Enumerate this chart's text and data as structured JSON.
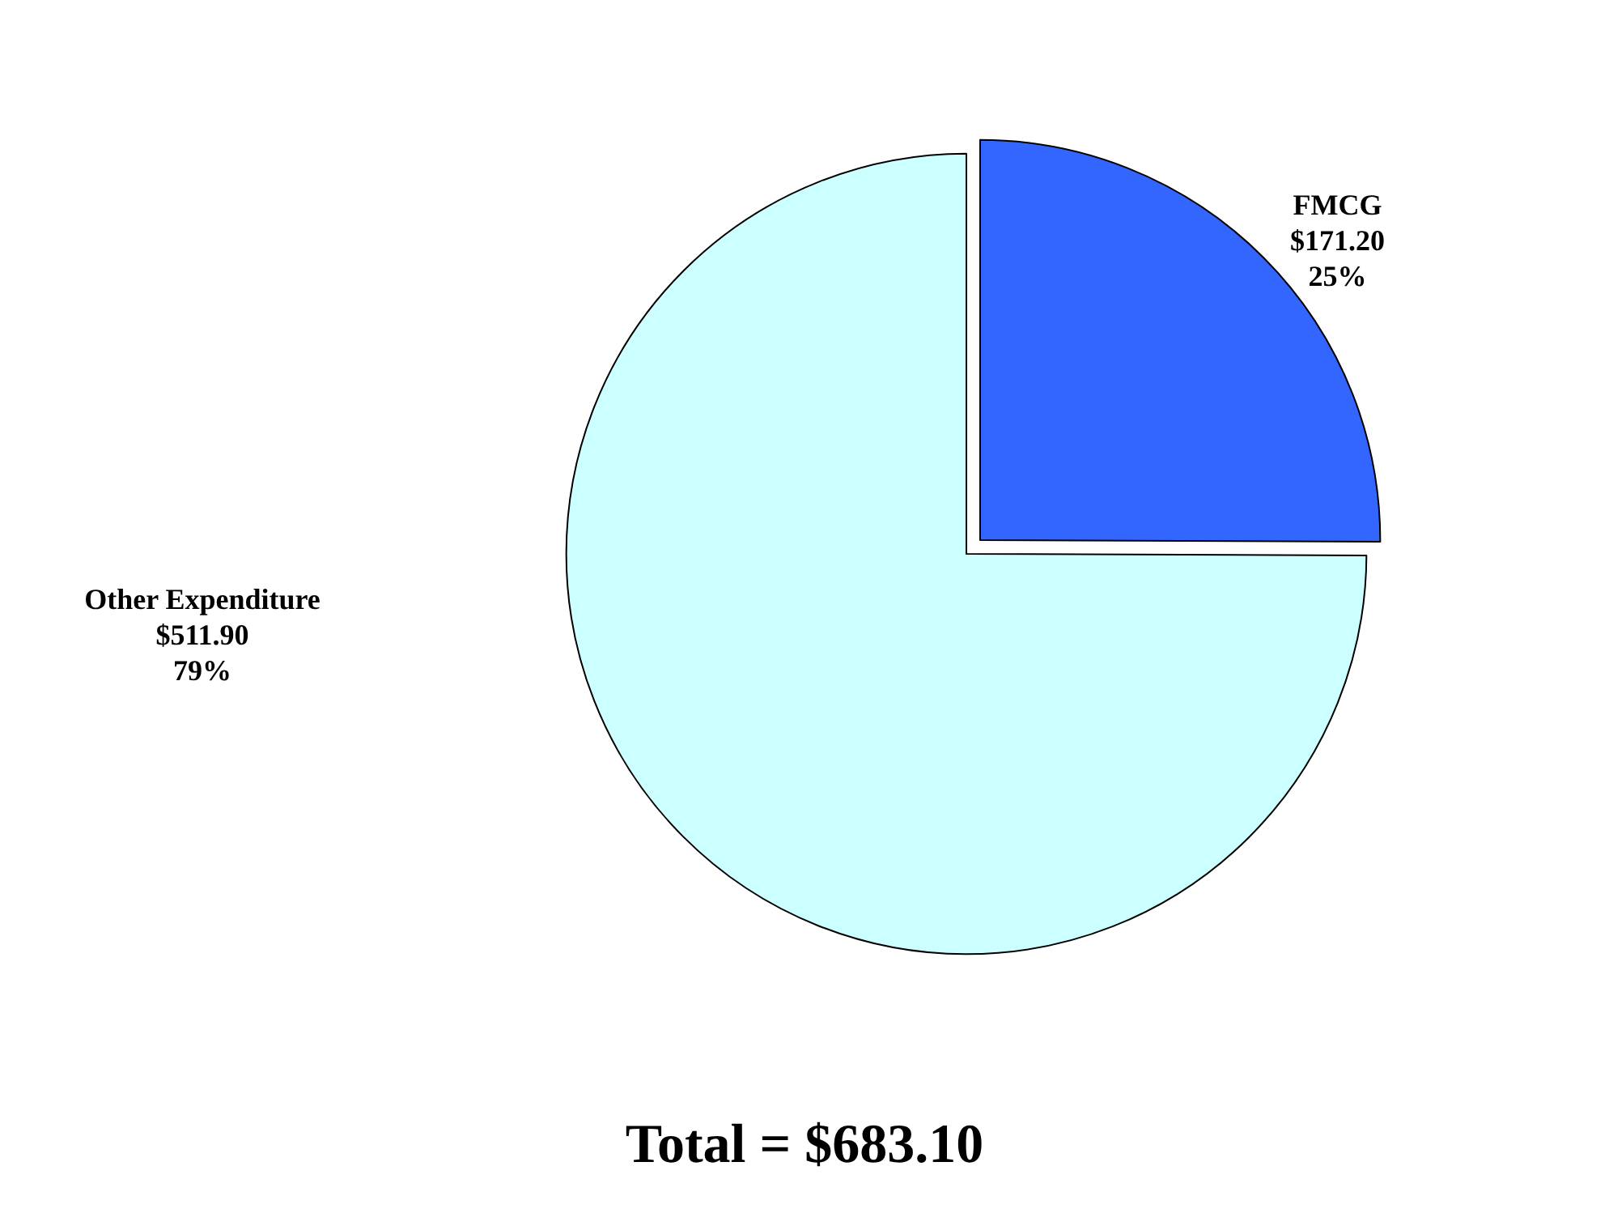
{
  "chart_data": {
    "type": "pie",
    "categories": [
      "FMCG",
      "Other Expenditure"
    ],
    "values": [
      171.2,
      511.9
    ],
    "colors": [
      "#3366ff",
      "#ccffff"
    ],
    "value_labels": [
      "$171.20\n25%",
      "$511.90\n79%"
    ],
    "annotations": [
      "Total = $683.10"
    ],
    "legend": false
  }
}
